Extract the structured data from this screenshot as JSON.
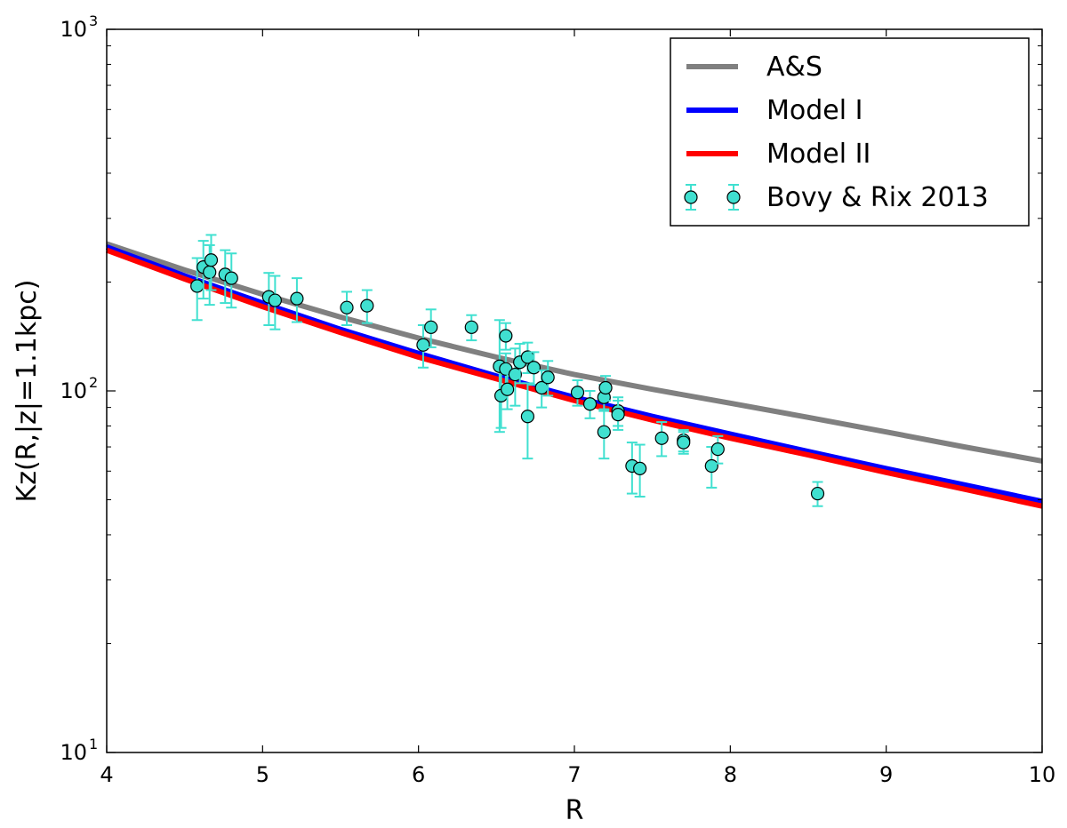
{
  "chart_data": {
    "type": "scatter",
    "title": "",
    "xlabel": "R",
    "ylabel": "Kz(R,|z|=1.1kpc)",
    "xlim": [
      4,
      10
    ],
    "ylim": [
      10,
      1000
    ],
    "yscale": "log",
    "grid": false,
    "legend_position": "top-right",
    "x_ticks": [
      "4",
      "5",
      "6",
      "7",
      "8",
      "9",
      "10"
    ],
    "y_ticks": [
      {
        "value": 10,
        "base": "10",
        "exp": "1"
      },
      {
        "value": 100,
        "base": "10",
        "exp": "2"
      },
      {
        "value": 1000,
        "base": "10",
        "exp": "3"
      }
    ],
    "series": [
      {
        "name": "A&S",
        "kind": "line",
        "color": "#808080",
        "x": [
          4,
          4.5,
          5,
          5.5,
          6,
          6.5,
          7,
          7.5,
          8,
          8.5,
          9,
          9.5,
          10
        ],
        "y": [
          255,
          216,
          185,
          160,
          140,
          124,
          111,
          101,
          92.5,
          84.5,
          77,
          70,
          64
        ]
      },
      {
        "name": "Model I",
        "kind": "line",
        "color": "#0000ff",
        "x": [
          4,
          4.5,
          5,
          5.5,
          6,
          6.5,
          7,
          7.5,
          8,
          8.5,
          9,
          9.5,
          10
        ],
        "y": [
          250,
          208,
          175,
          148,
          127,
          110,
          96,
          85,
          76,
          68,
          61,
          55,
          49.5
        ]
      },
      {
        "name": "Model II",
        "kind": "line",
        "color": "#ff0000",
        "x": [
          4,
          4.5,
          5,
          5.5,
          6,
          6.5,
          7,
          7.5,
          8,
          8.5,
          9,
          9.5,
          10
        ],
        "y": [
          245,
          204,
          171,
          145,
          124,
          108,
          94,
          83,
          74,
          66.5,
          59.5,
          53.5,
          48
        ]
      },
      {
        "name": "Bovy & Rix 2013",
        "kind": "errorbar",
        "color": "#40e0d0",
        "x": [
          4.58,
          4.62,
          4.66,
          4.67,
          4.76,
          4.8,
          5.04,
          5.08,
          5.22,
          5.54,
          5.67,
          6.03,
          6.08,
          6.34,
          6.52,
          6.53,
          6.56,
          6.56,
          6.57,
          6.62,
          6.65,
          6.7,
          6.7,
          6.74,
          6.79,
          6.83,
          7.02,
          7.1,
          7.19,
          7.19,
          7.2,
          7.28,
          7.28,
          7.37,
          7.42,
          7.56,
          7.7,
          7.7,
          7.88,
          7.92,
          8.56
        ],
        "y": [
          195,
          220,
          213,
          230,
          210,
          205,
          182,
          178,
          180,
          170,
          172,
          134,
          150,
          150,
          117,
          97,
          142,
          115,
          101,
          111,
          120,
          124,
          85,
          116,
          102,
          109,
          99,
          92,
          77,
          96,
          102,
          88,
          86,
          62,
          61,
          74,
          73,
          72,
          62,
          69,
          52
        ],
        "err": [
          38,
          40,
          40,
          40,
          35,
          35,
          30,
          30,
          25,
          18,
          18,
          18,
          18,
          12,
          40,
          18,
          12,
          12,
          12,
          20,
          15,
          12,
          20,
          12,
          12,
          12,
          8,
          8,
          12,
          8,
          8,
          8,
          8,
          10,
          10,
          8,
          5,
          5,
          8,
          6,
          4
        ]
      }
    ]
  }
}
